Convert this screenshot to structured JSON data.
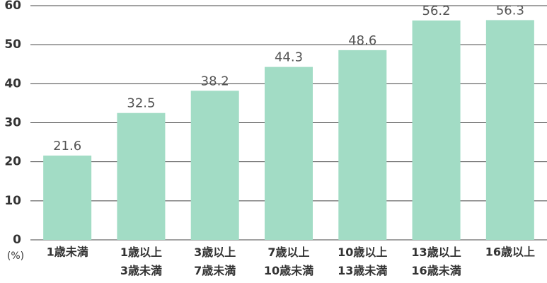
{
  "chart_data": {
    "type": "bar",
    "y_label": "(%)",
    "categories": [
      "1歳未満",
      "1歳以上\n3歳未満",
      "3歳以上\n7歳未満",
      "7歳以上\n10歳未満",
      "10歳以上\n13歳未満",
      "13歳以上\n16歳未満",
      "16歳以上"
    ],
    "values": [
      21.6,
      32.5,
      38.2,
      44.3,
      48.6,
      56.2,
      56.3
    ],
    "color": "#a2dcc5",
    "ylim": [
      0,
      60
    ],
    "yticks": [
      0,
      10,
      20,
      30,
      40,
      50,
      60
    ],
    "grid": true
  }
}
